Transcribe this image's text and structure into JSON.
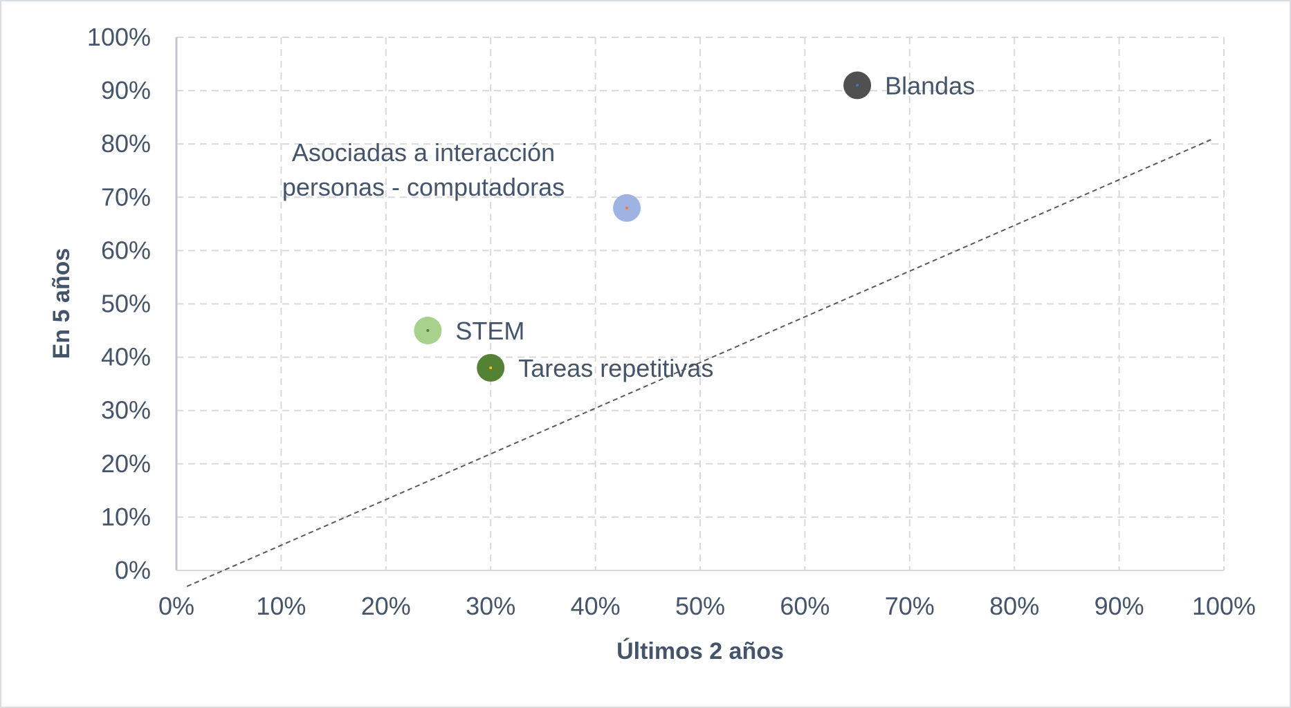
{
  "chart_data": {
    "type": "scatter",
    "title": "",
    "xlabel": "Últimos 2 años",
    "ylabel": "En 5 años",
    "xlim": [
      0,
      1
    ],
    "ylim": [
      0,
      1
    ],
    "x_ticks": [
      "0%",
      "10%",
      "20%",
      "30%",
      "40%",
      "50%",
      "60%",
      "70%",
      "80%",
      "90%",
      "100%"
    ],
    "y_ticks": [
      "0%",
      "10%",
      "20%",
      "30%",
      "40%",
      "50%",
      "60%",
      "70%",
      "80%",
      "90%",
      "100%"
    ],
    "grid": true,
    "legend": "none",
    "points": [
      {
        "label": "Blandas",
        "x": 0.65,
        "y": 0.91,
        "color": "#505050",
        "center_color": "#4472c4"
      },
      {
        "label": "Asociadas a interacción personas - computadoras",
        "label_lines": [
          "Asociadas a interacción",
          "personas - computadoras"
        ],
        "x": 0.43,
        "y": 0.68,
        "color": "#9eb3e2",
        "center_color": "#ed7d31"
      },
      {
        "label": "STEM",
        "x": 0.24,
        "y": 0.45,
        "color": "#a9d18e",
        "center_color": "#548235"
      },
      {
        "label": "Tareas repetitivas",
        "x": 0.3,
        "y": 0.38,
        "color": "#548235",
        "center_color": "#ffc000"
      }
    ],
    "trendline": {
      "style": "dashed",
      "color": "#595959",
      "from": [
        0.01,
        -0.03
      ],
      "to": [
        0.99,
        0.81
      ]
    }
  }
}
